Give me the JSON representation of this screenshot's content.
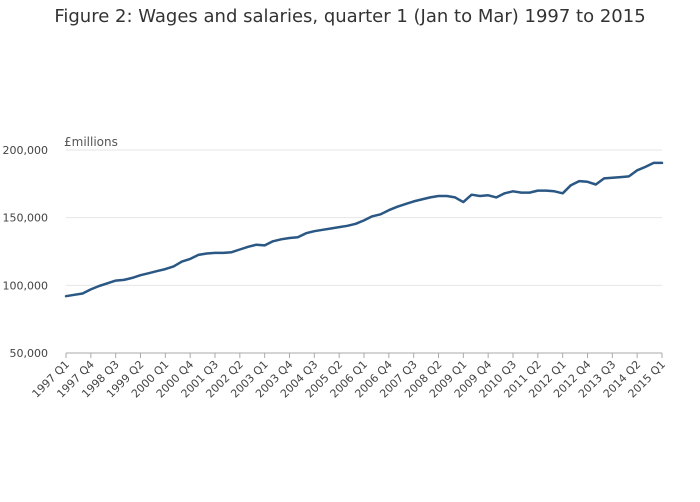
{
  "chart_data": {
    "type": "line",
    "title": "Figure 2: Wages and salaries, quarter 1 (Jan to Mar) 1997 to 2015",
    "unit_label": "£millions",
    "xlabel": "",
    "ylabel": "",
    "ylim": [
      50000,
      200000
    ],
    "yticks": [
      50000,
      100000,
      150000,
      200000
    ],
    "ytick_labels": [
      "50,000",
      "100,000",
      "150,000",
      "200,000"
    ],
    "grid": true,
    "colors": {
      "line": "#2a5783",
      "grid": "#e6e6e6",
      "axis": "#aaaaaa"
    },
    "x_tick_labels": [
      "1997 Q1",
      "1997 Q4",
      "1998 Q3",
      "1999 Q2",
      "2000 Q1",
      "2000 Q4",
      "2001 Q3",
      "2002 Q2",
      "2003 Q1",
      "2003 Q4",
      "2004 Q3",
      "2005 Q2",
      "2006 Q1",
      "2006 Q4",
      "2007 Q3",
      "2008 Q2",
      "2009 Q1",
      "2009 Q4",
      "2010 Q3",
      "2011 Q2",
      "2012 Q1",
      "2012 Q4",
      "2013 Q3",
      "2014 Q2",
      "2015 Q1"
    ],
    "series": [
      {
        "values": [
          92000,
          93000,
          94000,
          97000,
          99500,
          101500,
          103500,
          104000,
          105500,
          107500,
          109000,
          110500,
          112000,
          114000,
          117500,
          119500,
          122500,
          123500,
          124000,
          124000,
          124500,
          126500,
          128500,
          130000,
          129500,
          132500,
          134000,
          135000,
          135500,
          138500,
          140000,
          141000,
          142000,
          143000,
          144000,
          145500,
          148000,
          151000,
          152500,
          155500,
          158000,
          160000,
          162000,
          163500,
          165000,
          166000,
          166000,
          165000,
          161500,
          167000,
          166000,
          166500,
          165000,
          168000,
          169500,
          168500,
          168500,
          170000,
          170000,
          169500,
          168000,
          174000,
          177000,
          176500,
          174500,
          179000,
          179500,
          180000,
          180500,
          185000,
          187500,
          190500,
          190500
        ]
      }
    ]
  }
}
